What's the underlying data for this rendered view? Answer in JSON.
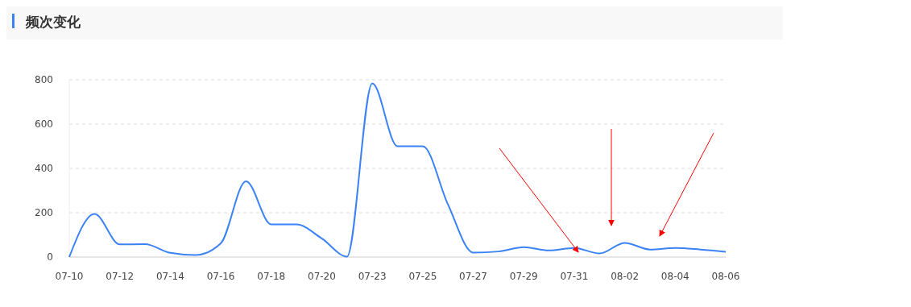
{
  "chart_data": {
    "type": "line",
    "title": "频次变化",
    "categories": [
      "07-10",
      null,
      "07-12",
      null,
      "07-14",
      null,
      "07-16",
      null,
      "07-18",
      null,
      "07-20",
      null,
      "07-23",
      null,
      "07-25",
      null,
      "07-27",
      null,
      "07-29",
      null,
      "07-31",
      null,
      "08-02",
      null,
      "08-04",
      null,
      "08-06"
    ],
    "series": [
      {
        "color": "#3b82f6",
        "values": [
          0,
          195,
          57,
          58,
          19,
          9,
          62,
          342,
          147,
          147,
          84,
          2,
          784,
          500,
          500,
          237,
          20,
          25,
          45,
          30,
          41,
          16,
          64,
          34,
          41,
          34,
          24
        ]
      }
    ],
    "ylim": [
      0,
      800
    ],
    "yticks": [
      0,
      200,
      400,
      600,
      800
    ],
    "grid": "y",
    "marker": "none",
    "line_style": "solid"
  }
}
